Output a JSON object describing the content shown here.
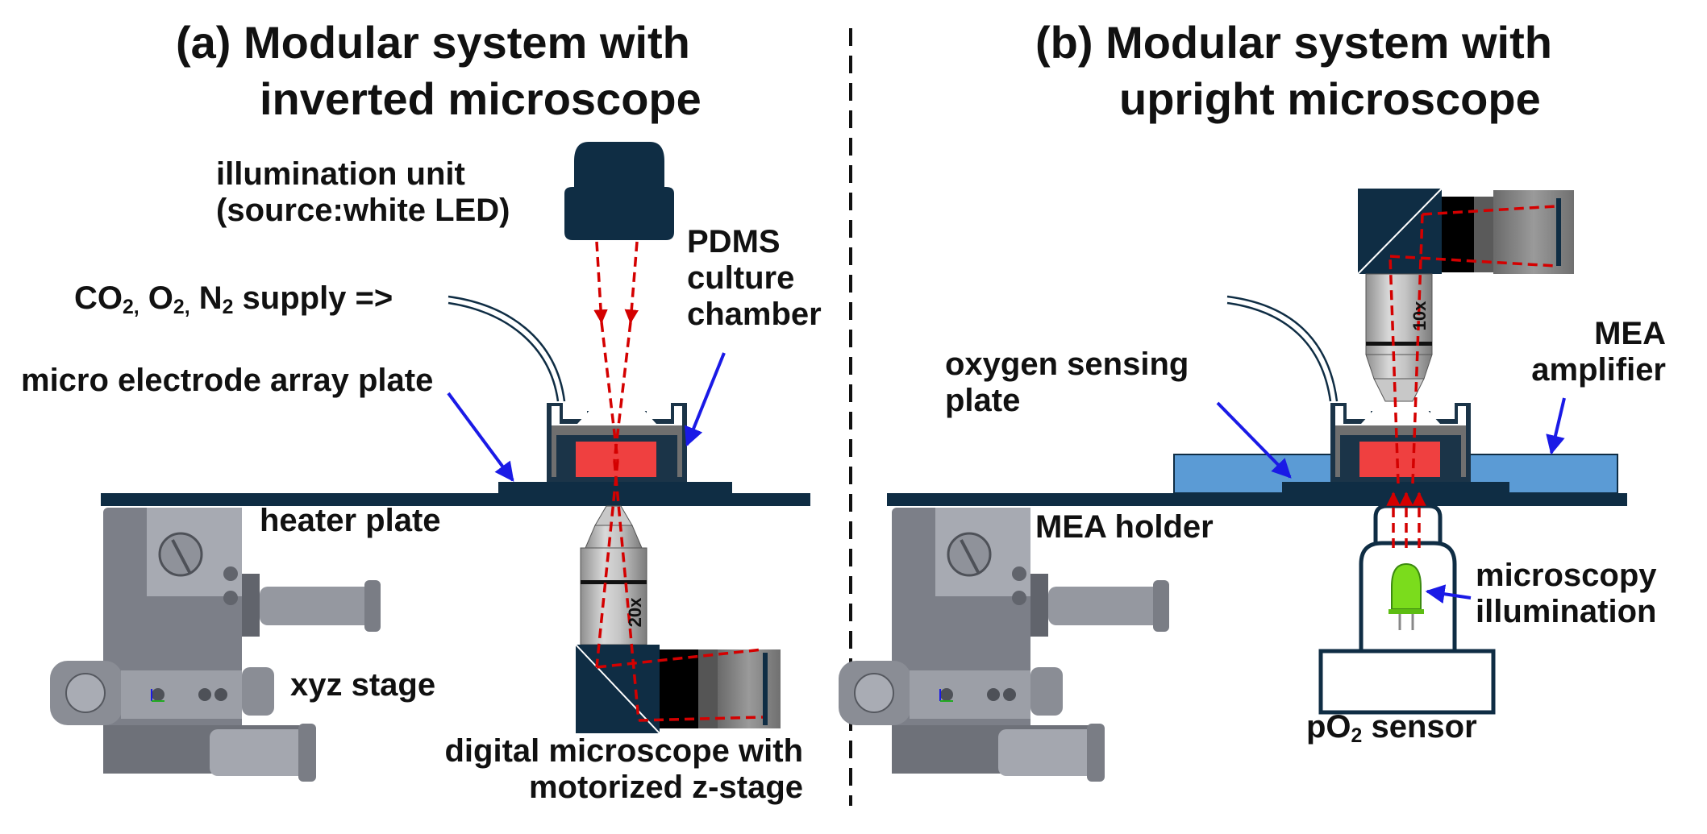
{
  "panel_a": {
    "title_line1": "(a) Modular system with",
    "title_line2": "inverted microscope",
    "illumination_line1": "illumination unit",
    "illumination_line2": "(source:white LED)",
    "gas_supply": {
      "co": "CO",
      "co_sub": "2,",
      "o": " O",
      "o_sub": "2,",
      "n": " N",
      "n_sub": "2",
      "rest": " supply =>"
    },
    "mea_plate": "micro electrode array plate",
    "pdms_line1": "PDMS",
    "pdms_line2": "culture",
    "pdms_line3": "chamber",
    "heater_plate": "heater plate",
    "xyz_stage": "xyz stage",
    "digital_line1": "digital microscope with",
    "digital_line2": "motorized z-stage",
    "objective_mag": "20x"
  },
  "panel_b": {
    "title_line1": "(b) Modular system with",
    "title_line2": "upright microscope",
    "mea_amp_line1": "MEA",
    "mea_amp_line2": "amplifier",
    "oxygen_line1": "oxygen sensing",
    "oxygen_line2": "plate",
    "mea_holder": "MEA holder",
    "illum_line1": "microscopy",
    "illum_line2": "illumination",
    "sensor_p": "pO",
    "sensor_sub": "2",
    "sensor_rest": " sensor",
    "objective_mag": "10x"
  },
  "colors": {
    "navy": "#0f2d44",
    "red_beam": "#d40000",
    "culture_red": "#ef4040",
    "arrow_blue": "#1a1ae6",
    "amp_blue": "#5b9bd5",
    "stage_gray": "#7c7f88",
    "chamber_gray": "#6f6f6f",
    "led_green": "#7bdc1c"
  }
}
